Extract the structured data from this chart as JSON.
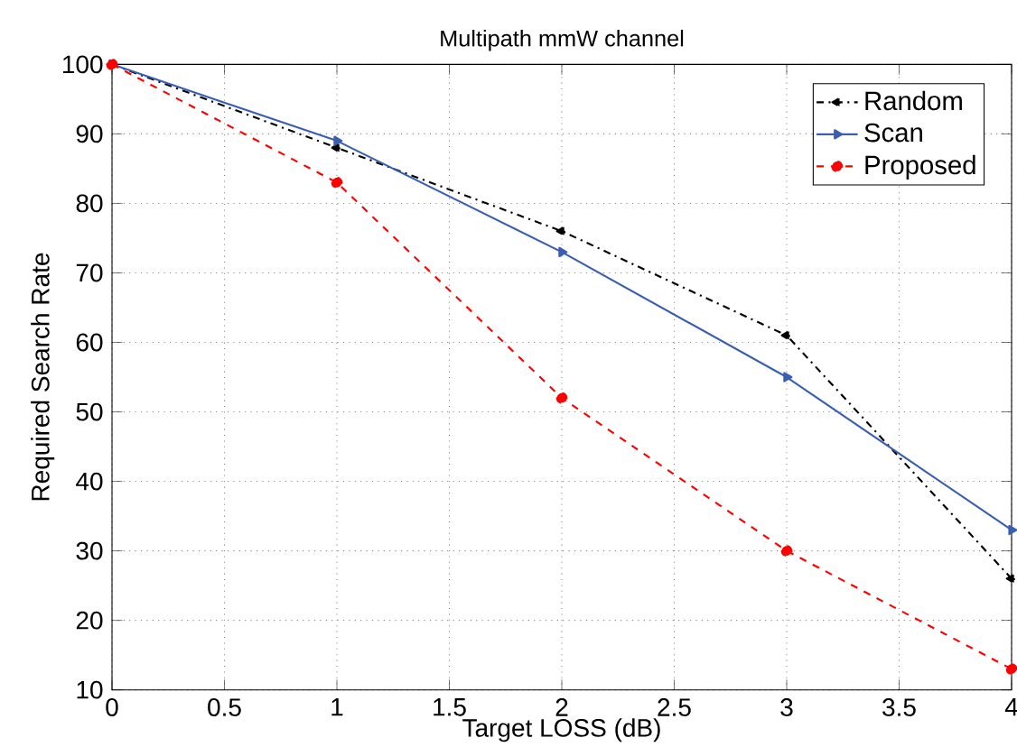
{
  "chart_data": {
    "type": "line",
    "title": "Multipath mmW channel",
    "xlabel": "Target LOSS (dB)",
    "ylabel": "Required Search Rate",
    "x": [
      0,
      1,
      2,
      3,
      4
    ],
    "series": [
      {
        "name": "Random",
        "color": "#000000",
        "values": [
          100,
          88,
          76,
          61,
          26
        ],
        "marker": "triangle-left",
        "line_style": "dashdot"
      },
      {
        "name": "Scan",
        "color": "#3a5fb0",
        "values": [
          100,
          89,
          73,
          55,
          33
        ],
        "marker": "triangle-right",
        "line_style": "solid"
      },
      {
        "name": "Proposed",
        "color": "#ff0000",
        "values": [
          100,
          83,
          52,
          30,
          13
        ],
        "marker": "circle",
        "line_style": "dashed"
      }
    ],
    "xlim": [
      0,
      4
    ],
    "ylim": [
      10,
      100
    ],
    "xticks": [
      0,
      0.5,
      1,
      1.5,
      2,
      2.5,
      3,
      3.5,
      4
    ],
    "yticks": [
      10,
      20,
      30,
      40,
      50,
      60,
      70,
      80,
      90,
      100
    ],
    "grid": true,
    "legend": "top right"
  }
}
